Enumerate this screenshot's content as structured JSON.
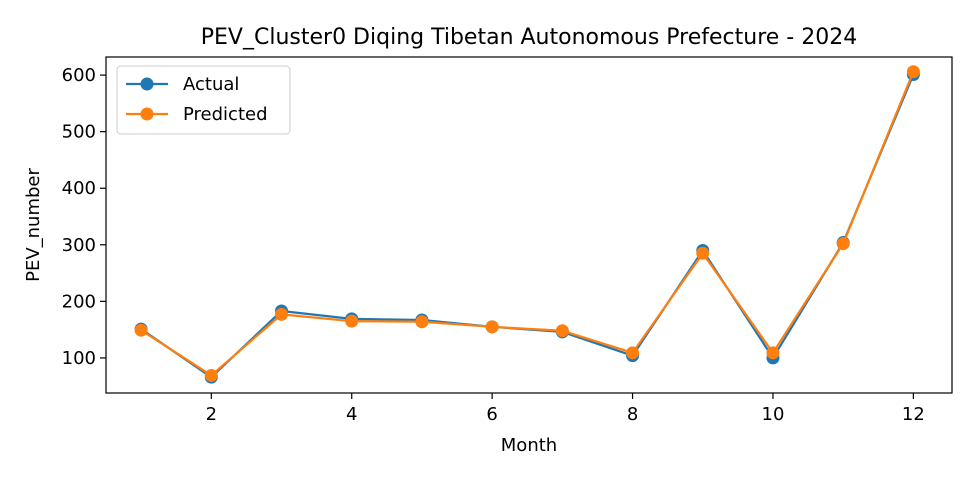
{
  "chart_data": {
    "type": "line",
    "title": "PEV_Cluster0 Diqing Tibetan Autonomous Prefecture - 2024",
    "xlabel": "Month",
    "ylabel": "PEV_number",
    "x": [
      1,
      2,
      3,
      4,
      5,
      6,
      7,
      8,
      9,
      10,
      11,
      12
    ],
    "xlim": [
      0.5,
      12.55
    ],
    "ylim": [
      38,
      632
    ],
    "xticks": [
      2,
      4,
      6,
      8,
      10,
      12
    ],
    "yticks": [
      100,
      200,
      300,
      400,
      500,
      600
    ],
    "grid": false,
    "legend_position": "top-left",
    "series": [
      {
        "name": "Actual",
        "color": "#1f77b4",
        "values": [
          151,
          66,
          183,
          169,
          167,
          155,
          146,
          104,
          290,
          100,
          304,
          601
        ]
      },
      {
        "name": "Predicted",
        "color": "#ff7f0e",
        "values": [
          149,
          69,
          177,
          165,
          164,
          155,
          148,
          109,
          285,
          109,
          302,
          606
        ]
      }
    ]
  }
}
